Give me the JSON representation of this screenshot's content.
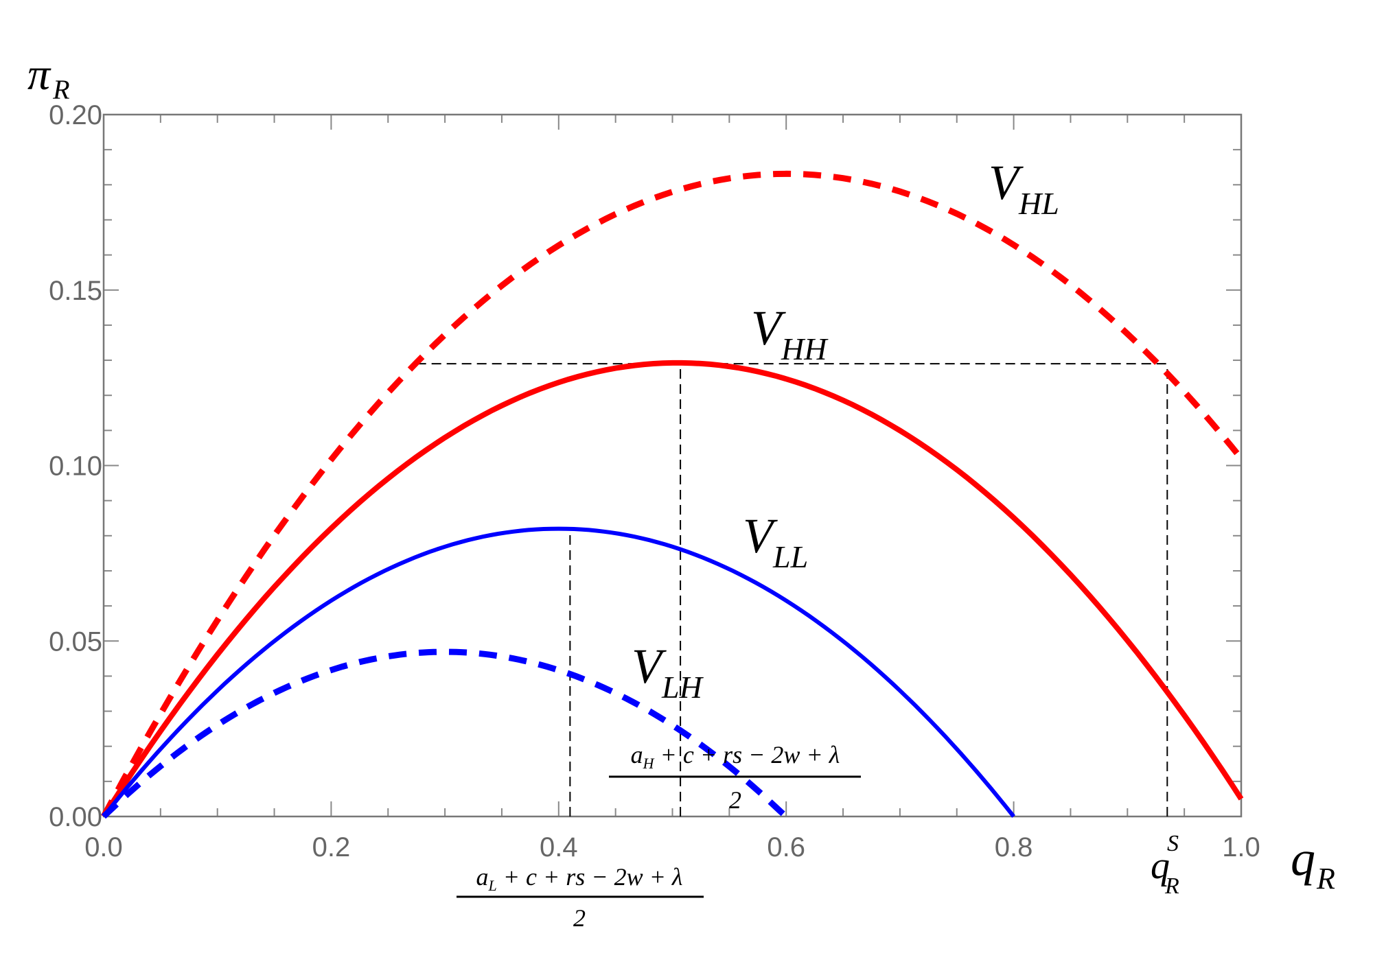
{
  "chart_data": {
    "type": "line",
    "title": "",
    "xlabel": "q_R",
    "ylabel": "π_R",
    "xlim": [
      0,
      1.0
    ],
    "ylim": [
      0,
      0.2
    ],
    "x_ticks": [
      "0.0",
      "0.2",
      "0.4",
      "0.6",
      "0.8",
      "1.0"
    ],
    "x_tick_values": [
      0,
      0.2,
      0.4,
      0.6,
      0.8,
      1.0
    ],
    "y_ticks": [
      "0.00",
      "0.05",
      "0.10",
      "0.15",
      "0.20"
    ],
    "y_tick_values": [
      0,
      0.05,
      0.1,
      0.15,
      0.2
    ],
    "grid": false,
    "series": [
      {
        "name": "V_HL",
        "label_main": "V",
        "label_sub": "HL",
        "color": "#ff0000",
        "style": "dashed",
        "form": "a*x - b*x^2",
        "a": 0.61,
        "b": 0.508,
        "x_range": [
          0,
          1.0
        ],
        "peak": [
          0.6,
          0.183
        ]
      },
      {
        "name": "V_HH",
        "label_main": "V",
        "label_sub": "HH",
        "color": "#ff0000",
        "style": "solid",
        "form": "a*x - b*x^2",
        "a": 0.512,
        "b": 0.507,
        "x_range": [
          0,
          1.0
        ],
        "peak": [
          0.505,
          0.128
        ]
      },
      {
        "name": "V_LL",
        "label_main": "V",
        "label_sub": "LL",
        "color": "#0000ff",
        "style": "solid",
        "form": "a*x - b*x^2",
        "a": 0.41,
        "b": 0.5125,
        "x_range": [
          0,
          0.8
        ],
        "peak": [
          0.4,
          0.082
        ]
      },
      {
        "name": "V_LH",
        "label_main": "V",
        "label_sub": "LH",
        "color": "#0000ff",
        "style": "dashed",
        "form": "a*x - b*x^2",
        "a": 0.313,
        "b": 0.522,
        "x_range": [
          0,
          0.6
        ],
        "peak": [
          0.3,
          0.047
        ]
      }
    ],
    "reference_lines": [
      {
        "type": "horizontal",
        "y": 0.129,
        "x_from": 0.275,
        "x_to": 0.935
      },
      {
        "type": "vertical",
        "x": 0.41,
        "y_to": 0.082
      },
      {
        "type": "vertical",
        "x": 0.507,
        "y_to": 0.128
      },
      {
        "type": "vertical",
        "x": 0.935,
        "y_to": 0.129
      }
    ],
    "annotations": {
      "aH_numerator": "a",
      "aH_sub": "H",
      "aH_rest": " + c + rs − 2w + λ",
      "aH_denominator": "2",
      "aL_numerator": "a",
      "aL_sub": "L",
      "aL_rest": " + c + rs − 2w + λ",
      "aL_denominator": "2",
      "qRS_main": "q",
      "qRS_sub": "R",
      "qRS_sup": "S",
      "xlabel_main": "q",
      "xlabel_sub": "R",
      "ylabel_main": "π",
      "ylabel_sub": "R"
    }
  }
}
